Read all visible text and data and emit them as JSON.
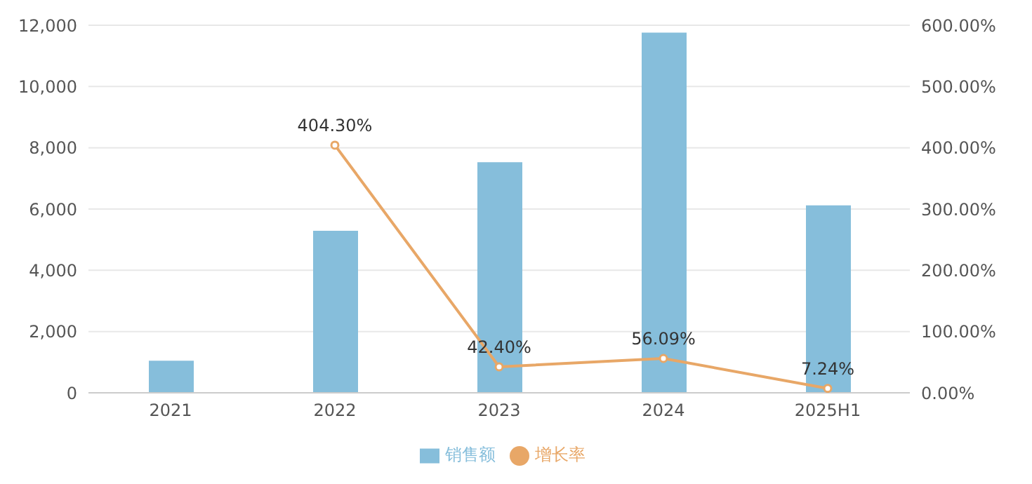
{
  "chart_data": {
    "type": "bar",
    "categories": [
      "2021",
      "2022",
      "2023",
      "2024",
      "2025H1"
    ],
    "series": [
      {
        "name": "销售额",
        "color": "#86bedb",
        "values": [
          1050,
          5290,
          7530,
          11760,
          6120
        ]
      },
      {
        "name": "增长率",
        "type": "line",
        "axis": "y2",
        "color": "#e8a767",
        "values": [
          null,
          404.3,
          42.4,
          56.09,
          7.24
        ],
        "value_labels": [
          null,
          "404.30%",
          "42.40%",
          "56.09%",
          "7.24%"
        ]
      }
    ],
    "ylim": [
      0,
      12000
    ],
    "yticks": [
      0,
      {
        "value": 2000,
        "label": "2,000"
      },
      {
        "value": 4000,
        "label": "4,000"
      },
      {
        "value": 6000,
        "label": "6,000"
      },
      {
        "value": 8000,
        "label": "8,000"
      },
      {
        "value": 10000,
        "label": "10,000"
      },
      {
        "value": 12000,
        "label": "12,000"
      }
    ],
    "y2lim": [
      0,
      600
    ],
    "y2ticks": [
      {
        "value": 0,
        "label": "0.00%"
      },
      {
        "value": 100,
        "label": "100.00%"
      },
      {
        "value": 200,
        "label": "200.00%"
      },
      {
        "value": 300,
        "label": "300.00%"
      },
      {
        "value": 400,
        "label": "400.00%"
      },
      {
        "value": 500,
        "label": "500.00%"
      },
      {
        "value": 600,
        "label": "600.00%"
      }
    ],
    "grid": "y",
    "legend": "bottom",
    "marker": "circle"
  }
}
